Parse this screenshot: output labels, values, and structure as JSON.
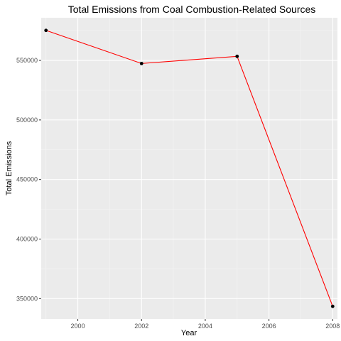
{
  "chart_data": {
    "type": "line",
    "title": "Total Emissions from Coal Combustion-Related Sources",
    "xlabel": "Year",
    "ylabel": "Total Emissions",
    "x": [
      1999,
      2002,
      2005,
      2008
    ],
    "series": [
      {
        "values": [
          575200,
          547400,
          553400,
          343500
        ]
      }
    ],
    "xticks": [
      2000,
      2002,
      2004,
      2006,
      2008
    ],
    "xtick_labels": [
      "2000",
      "2002",
      "2004",
      "2006",
      "2008"
    ],
    "yticks": [
      350000,
      400000,
      450000,
      500000,
      550000
    ],
    "ytick_labels": [
      "350000",
      "400000",
      "450000",
      "500000",
      "550000"
    ],
    "xlim": [
      1998.85,
      2008.15
    ],
    "ylim": [
      332900,
      585800
    ],
    "grid": true,
    "legend": "none",
    "colors": {
      "panel": "#ebebeb",
      "grid_major": "#ffffff",
      "grid_minor": "#f5f5f5",
      "line": "#ff0000",
      "point": "#000000"
    }
  }
}
